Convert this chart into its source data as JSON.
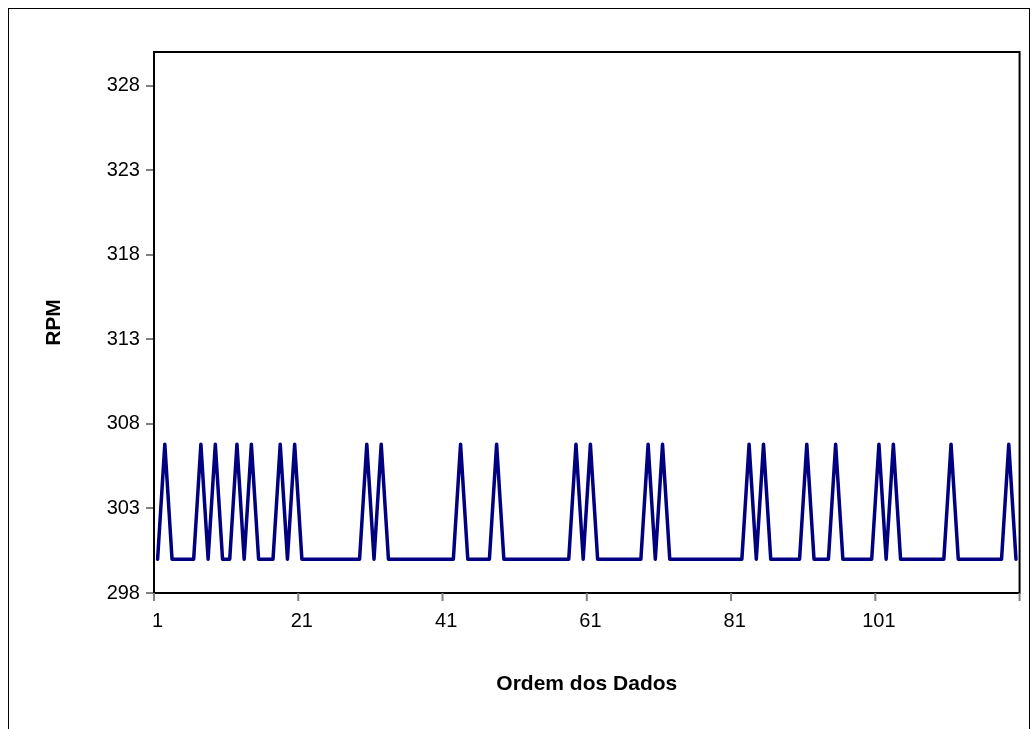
{
  "chart_data": {
    "type": "line",
    "xlabel": "Ordem dos Dados",
    "ylabel": "RPM",
    "categories": [
      "1",
      null,
      null,
      null,
      null,
      null,
      null,
      null,
      null,
      null,
      null,
      null,
      null,
      null,
      null,
      null,
      null,
      null,
      null,
      null,
      "21",
      null,
      null,
      null,
      null,
      null,
      null,
      null,
      null,
      null,
      null,
      null,
      null,
      null,
      null,
      null,
      null,
      null,
      null,
      null,
      "41",
      null,
      null,
      null,
      null,
      null,
      null,
      null,
      null,
      null,
      null,
      null,
      null,
      null,
      null,
      null,
      null,
      null,
      null,
      null,
      "61",
      null,
      null,
      null,
      null,
      null,
      null,
      null,
      null,
      null,
      null,
      null,
      null,
      null,
      null,
      null,
      null,
      null,
      null,
      null,
      "81",
      null,
      null,
      null,
      null,
      null,
      null,
      null,
      null,
      null,
      null,
      null,
      null,
      null,
      null,
      null,
      null,
      null,
      null,
      null,
      "101",
      null,
      null,
      null,
      null,
      null,
      null,
      null,
      null,
      null,
      null,
      null,
      null,
      null,
      null,
      null,
      null,
      null,
      null,
      null
    ],
    "series": [
      {
        "color": "#000080",
        "values": [
          300,
          306.8,
          300,
          300,
          300,
          300,
          306.8,
          300,
          306.8,
          300,
          300,
          306.8,
          300,
          306.8,
          300,
          300,
          300,
          306.8,
          300,
          306.8,
          300,
          300,
          300,
          300,
          300,
          300,
          300,
          300,
          300,
          306.8,
          300,
          306.8,
          300,
          300,
          300,
          300,
          300,
          300,
          300,
          300,
          300,
          300,
          306.8,
          300,
          300,
          300,
          300,
          306.8,
          300,
          300,
          300,
          300,
          300,
          300,
          300,
          300,
          300,
          300,
          306.8,
          300,
          306.8,
          300,
          300,
          300,
          300,
          300,
          300,
          300,
          306.8,
          300,
          306.8,
          300,
          300,
          300,
          300,
          300,
          300,
          300,
          300,
          300,
          300,
          300,
          306.8,
          300,
          306.8,
          300,
          300,
          300,
          300,
          300,
          306.8,
          300,
          300,
          300,
          306.8,
          300,
          300,
          300,
          300,
          300,
          306.8,
          300,
          306.8,
          300,
          300,
          300,
          300,
          300,
          300,
          300,
          306.8,
          300,
          300,
          300,
          300,
          300,
          300,
          300,
          306.8,
          300
        ]
      }
    ],
    "ylim": [
      298,
      330
    ],
    "yticks": [
      298,
      303,
      308,
      313,
      318,
      323,
      328
    ],
    "grid": false,
    "legend": false,
    "marker": "none",
    "line_style": "solid"
  }
}
